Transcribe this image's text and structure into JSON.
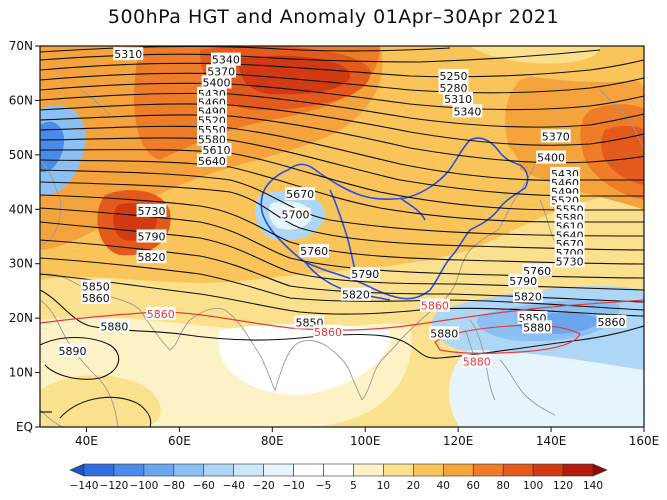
{
  "map": {
    "title": "500hPa HGT and Anomaly 01Apr–30Apr 2021",
    "lon_range": [
      30,
      160
    ],
    "lat_range": [
      0,
      70
    ],
    "lon_ticks": [
      "40E",
      "60E",
      "80E",
      "100E",
      "120E",
      "140E",
      "160E"
    ],
    "lat_ticks": [
      "EQ",
      "10N",
      "20N",
      "30N",
      "40N",
      "50N",
      "60N",
      "70N"
    ],
    "contour_color": "#111111",
    "highlight_contour_color": "#e83b3b",
    "border_color": "#2a4fe8",
    "coast_color": "#9a9a9a"
  },
  "contour_labels": [
    {
      "text": "5310",
      "lon": 49,
      "lat": 68.5
    },
    {
      "text": "5340",
      "lon": 70,
      "lat": 67.5
    },
    {
      "text": "5370",
      "lon": 69,
      "lat": 65.3
    },
    {
      "text": "5400",
      "lon": 68,
      "lat": 63.3
    },
    {
      "text": "5430",
      "lon": 67,
      "lat": 61.2
    },
    {
      "text": "5460",
      "lon": 67,
      "lat": 59.6
    },
    {
      "text": "5490",
      "lon": 67,
      "lat": 58.0
    },
    {
      "text": "5520",
      "lon": 67,
      "lat": 56.3
    },
    {
      "text": "5550",
      "lon": 67,
      "lat": 54.6
    },
    {
      "text": "5580",
      "lon": 67,
      "lat": 52.8
    },
    {
      "text": "5610",
      "lon": 68,
      "lat": 50.9
    },
    {
      "text": "5640",
      "lon": 67,
      "lat": 48.9
    },
    {
      "text": "5670",
      "lon": 86,
      "lat": 42.8
    },
    {
      "text": "5700",
      "lon": 85,
      "lat": 39.0
    },
    {
      "text": "5730",
      "lon": 54,
      "lat": 39.7
    },
    {
      "text": "5760",
      "lon": 89,
      "lat": 32.3
    },
    {
      "text": "5790",
      "lon": 54,
      "lat": 35.0
    },
    {
      "text": "5790",
      "lon": 100,
      "lat": 28.1
    },
    {
      "text": "5820",
      "lon": 54,
      "lat": 31.2
    },
    {
      "text": "5820",
      "lon": 98,
      "lat": 24.3
    },
    {
      "text": "5850",
      "lon": 42,
      "lat": 25.8
    },
    {
      "text": "5860",
      "lon": 42,
      "lat": 23.7
    },
    {
      "text": "5860",
      "lon": 56,
      "lat": 20.8
    },
    {
      "text": "5850",
      "lon": 88,
      "lat": 19.2
    },
    {
      "text": "5860",
      "lon": 92,
      "lat": 17.5
    },
    {
      "text": "5860",
      "lon": 115,
      "lat": 22.3
    },
    {
      "text": "5880",
      "lon": 46,
      "lat": 18.5
    },
    {
      "text": "5880",
      "lon": 117,
      "lat": 17.2
    },
    {
      "text": "5880",
      "lon": 124,
      "lat": 12.0
    },
    {
      "text": "5890",
      "lon": 37,
      "lat": 14.0
    },
    {
      "text": "5250",
      "lon": 119,
      "lat": 64.5
    },
    {
      "text": "5280",
      "lon": 119,
      "lat": 62.3
    },
    {
      "text": "5310",
      "lon": 120,
      "lat": 60.3
    },
    {
      "text": "5340",
      "lon": 122,
      "lat": 58.0
    },
    {
      "text": "5370",
      "lon": 141,
      "lat": 53.4
    },
    {
      "text": "5400",
      "lon": 140,
      "lat": 49.5
    },
    {
      "text": "5430",
      "lon": 143,
      "lat": 46.5
    },
    {
      "text": "5460",
      "lon": 143,
      "lat": 44.8
    },
    {
      "text": "5490",
      "lon": 143,
      "lat": 43.2
    },
    {
      "text": "5520",
      "lon": 143,
      "lat": 41.6
    },
    {
      "text": "5550",
      "lon": 144,
      "lat": 40.0
    },
    {
      "text": "5580",
      "lon": 144,
      "lat": 38.4
    },
    {
      "text": "5610",
      "lon": 144,
      "lat": 36.8
    },
    {
      "text": "5640",
      "lon": 144,
      "lat": 35.2
    },
    {
      "text": "5670",
      "lon": 144,
      "lat": 33.6
    },
    {
      "text": "5700",
      "lon": 144,
      "lat": 32.0
    },
    {
      "text": "5730",
      "lon": 144,
      "lat": 30.4
    },
    {
      "text": "5760",
      "lon": 137,
      "lat": 28.7
    },
    {
      "text": "5790",
      "lon": 134,
      "lat": 26.8
    },
    {
      "text": "5820",
      "lon": 135,
      "lat": 24.0
    },
    {
      "text": "5850",
      "lon": 136,
      "lat": 20.0
    },
    {
      "text": "5880",
      "lon": 137,
      "lat": 18.3
    },
    {
      "text": "5860",
      "lon": 153,
      "lat": 19.3
    }
  ],
  "colorbar": {
    "labels": [
      "−140",
      "−120",
      "−100",
      "−80",
      "−60",
      "−40",
      "−20",
      "−10",
      "−5",
      "5",
      "10",
      "20",
      "40",
      "60",
      "80",
      "100",
      "120",
      "140"
    ],
    "colors": [
      "#1a53c9",
      "#2f6fe0",
      "#4a8ae8",
      "#6aa5ee",
      "#8cc0f2",
      "#aed6f6",
      "#cde9f9",
      "#e6f5fb",
      "#ffffff",
      "#ffffff",
      "#fdf2c6",
      "#fbe08d",
      "#f9c55a",
      "#f5a33c",
      "#ef7c27",
      "#e45a1c",
      "#d23a14",
      "#b31c0d",
      "#8f0a08"
    ]
  }
}
